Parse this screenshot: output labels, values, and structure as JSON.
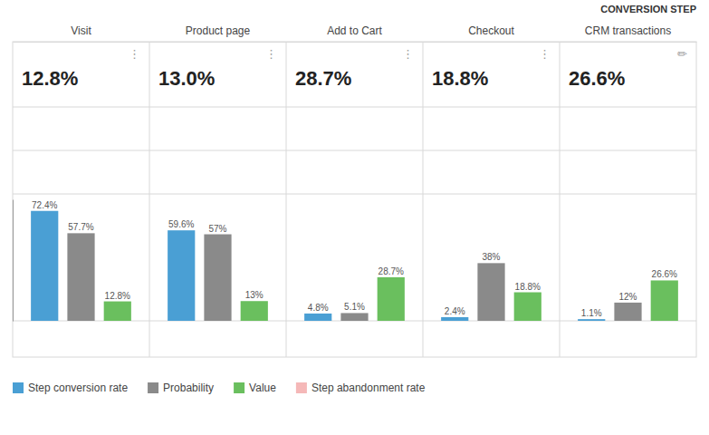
{
  "chart_data": {
    "type": "bar",
    "subtitle": "CONVERSION STEP",
    "categories": [
      "Visit",
      "Product page",
      "Add to Cart",
      "Checkout",
      "CRM transactions"
    ],
    "series": [
      {
        "name": "Step conversion rate",
        "color": "#4a9fd4",
        "values": [
          72.4,
          59.6,
          4.8,
          2.4,
          1.1
        ],
        "value_labels": [
          "72.4%",
          "59.6%",
          "4.8%",
          "2.4%",
          "1.1%"
        ]
      },
      {
        "name": "Probability",
        "color": "#8a8a8a",
        "values": [
          57.7,
          57.0,
          5.1,
          38.0,
          12.0
        ],
        "value_labels": [
          "57.7%",
          "57%",
          "5.1%",
          "38%",
          "12%"
        ]
      },
      {
        "name": "Value",
        "color": "#6abf5e",
        "values": [
          12.8,
          13.0,
          28.7,
          18.8,
          26.6
        ],
        "value_labels": [
          "12.8%",
          "13%",
          "28.7%",
          "18.8%",
          "26.6%"
        ]
      },
      {
        "name": "Step abandonment rate",
        "color": "#f5b8b8",
        "values": [
          null,
          null,
          null,
          null,
          null
        ]
      }
    ],
    "annotations": [
      {
        "category": "Visit",
        "text": "12.8%"
      },
      {
        "category": "Visit",
        "text": "⋮"
      },
      {
        "category": "Product page",
        "text": "13.0%"
      },
      {
        "category": "Product page",
        "text": "⋮"
      },
      {
        "category": "Add to Cart",
        "text": "28.7%"
      },
      {
        "category": "Add to Cart",
        "text": "⋮"
      },
      {
        "category": "Checkout",
        "text": "18.8%"
      },
      {
        "category": "Checkout",
        "text": "⋮"
      },
      {
        "category": "CRM transactions",
        "text": "26.6%"
      },
      {
        "category": "CRM transactions",
        "text": "✏"
      }
    ],
    "ylim": [
      0,
      80
    ],
    "data_labels": true,
    "tick_labels": false,
    "legend": "bottom"
  }
}
